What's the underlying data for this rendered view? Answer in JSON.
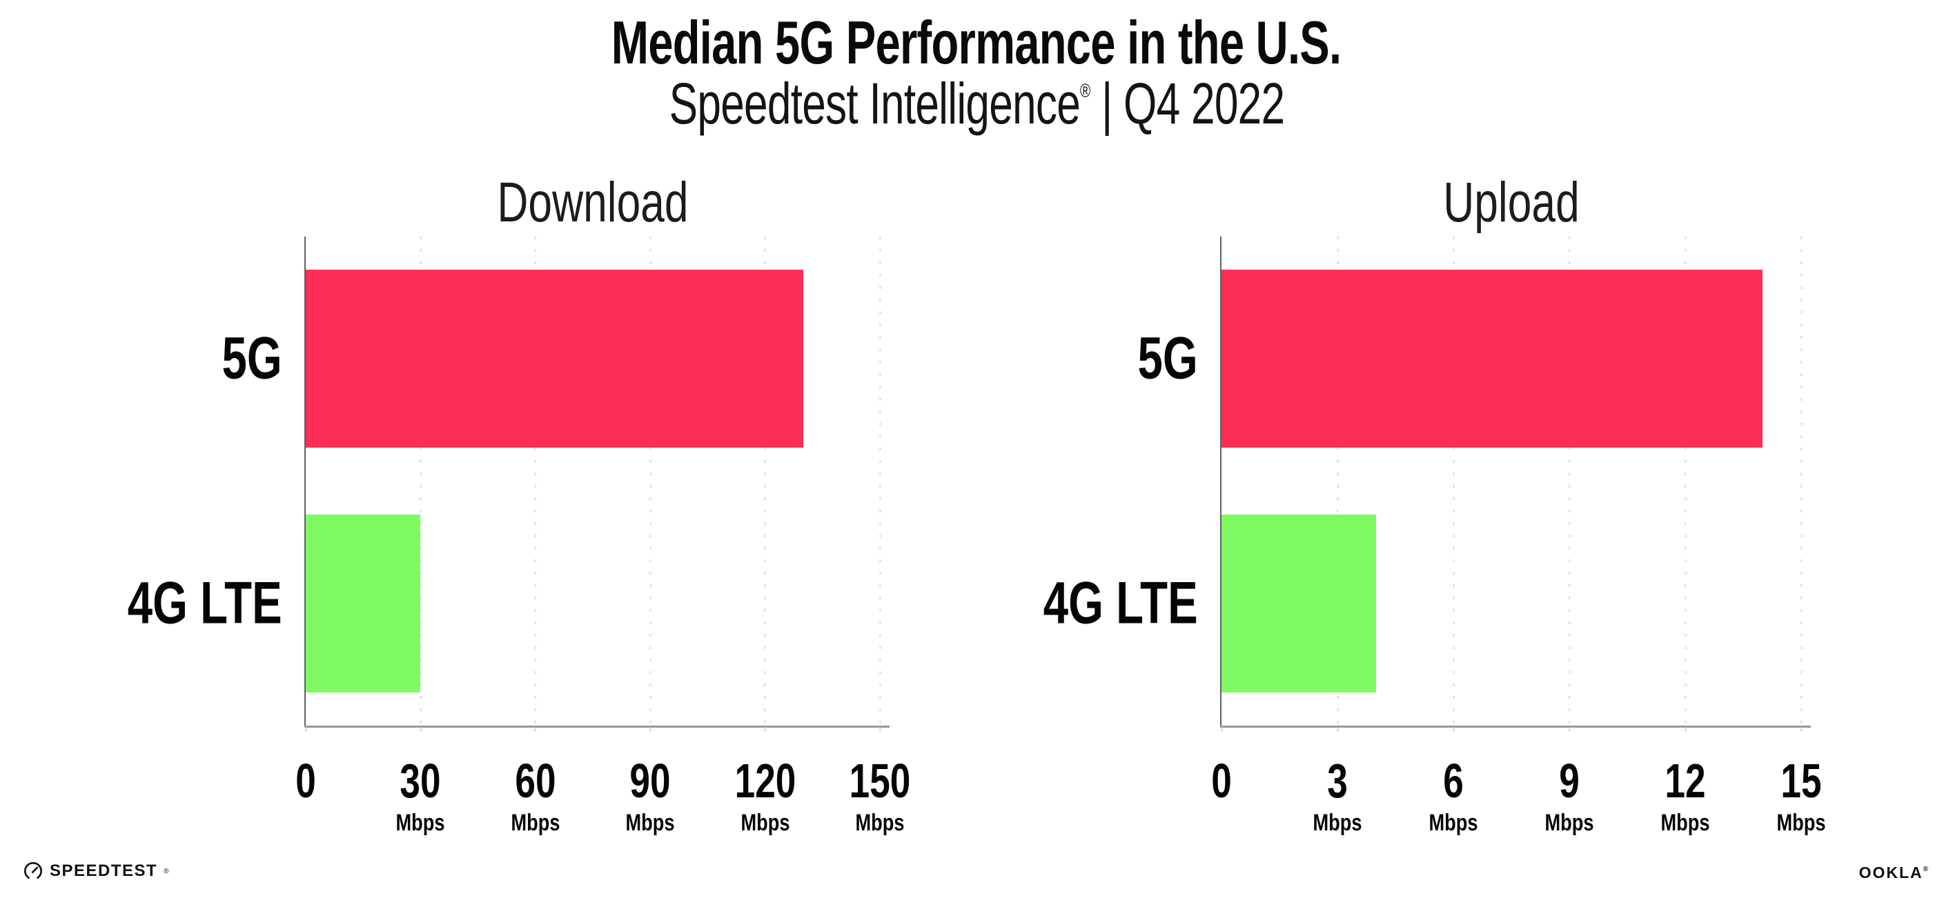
{
  "header": {
    "title": "Median 5G Performance in the U.S.",
    "subtitle_brand": "Speedtest Intelligence",
    "subtitle_reg": "®",
    "subtitle_rest": " | Q4 2022"
  },
  "chart_data": [
    {
      "type": "bar",
      "orientation": "horizontal",
      "title": "Download",
      "categories": [
        "5G",
        "4G LTE"
      ],
      "values": [
        130,
        30
      ],
      "unit": "Mbps",
      "xlim": [
        0,
        150
      ],
      "xticks": [
        0,
        30,
        60,
        90,
        120,
        150
      ],
      "bar_colors": [
        "#FD2E55",
        "#80FA62"
      ],
      "grid": "dotted-vertical",
      "legend": "none"
    },
    {
      "type": "bar",
      "orientation": "horizontal",
      "title": "Upload",
      "categories": [
        "5G",
        "4G LTE"
      ],
      "values": [
        14,
        4
      ],
      "unit": "Mbps",
      "xlim": [
        0,
        15
      ],
      "xticks": [
        0,
        3,
        6,
        9,
        12,
        15
      ],
      "bar_colors": [
        "#FD2E55",
        "#80FA62"
      ],
      "grid": "dotted-vertical",
      "legend": "none"
    }
  ],
  "footer": {
    "speedtest_label": "SPEEDTEST",
    "speedtest_reg": "®",
    "ookla_label": "OOKLA",
    "ookla_reg": "®"
  },
  "icons": {
    "speedtest": "gauge-icon"
  },
  "colors": {
    "bar_5g": "#FD2E55",
    "bar_4g_lte": "#80FA62",
    "gridline": "#E3E3EE",
    "axis_y": "#5F5F66",
    "axis_x": "#97979C",
    "text": "#0A0A0A"
  }
}
